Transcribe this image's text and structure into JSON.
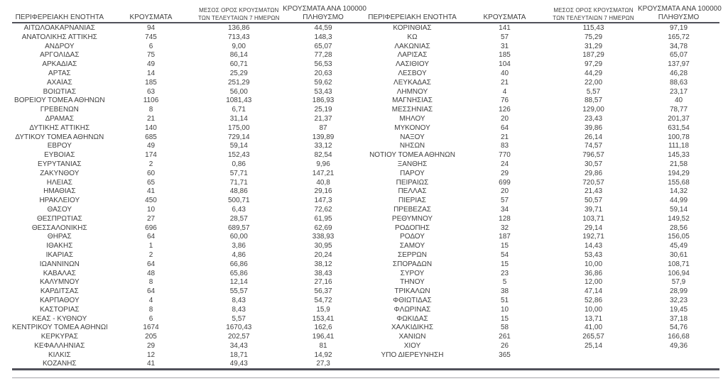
{
  "document": {
    "kind": "regional-covid-cases-table",
    "language": "el"
  },
  "colors": {
    "background": "#ffffff",
    "text": "#3f3f3f",
    "rule_dark": "#50515a",
    "rule_light": "#a3a3a9"
  },
  "table": {
    "headers": {
      "region": "ΠΕΡΙΦΕΡΕΙΑΚΗ ΕΝΟΤΗΤΑ",
      "cases": "ΚΡΟΥΣΜΑΤΑ",
      "avg7_line1": "ΜΕΣΟΣ ΟΡΟΣ ΚΡΟΥΣΜΑΤΩΝ",
      "avg7_line2": "ΤΩΝ ΤΕΛΕΥΤΑΙΩΝ 7 ΗΜΕΡΩΝ",
      "per100k_line1": "ΚΡΟΥΣΜΑΤΑ ΑΝΑ 100000",
      "per100k_line2": "ΠΛΗΘΥΣΜΟ"
    },
    "left_rows": [
      [
        "ΑΙΤΩΛΟΑΚΑΡΝΑΝΙΑΣ",
        "94",
        "136,86",
        "44,59"
      ],
      [
        "ΑΝΑΤΟΛΙΚΗΣ ΑΤΤΙΚΗΣ",
        "745",
        "713,43",
        "148,3"
      ],
      [
        "ΑΝΔΡΟΥ",
        "6",
        "9,00",
        "65,07"
      ],
      [
        "ΑΡΓΟΛΙΔΑΣ",
        "75",
        "86,14",
        "77,28"
      ],
      [
        "ΑΡΚΑΔΙΑΣ",
        "49",
        "60,71",
        "56,53"
      ],
      [
        "ΑΡΤΑΣ",
        "14",
        "25,29",
        "20,63"
      ],
      [
        "ΑΧΑΪΑΣ",
        "185",
        "251,29",
        "59,62"
      ],
      [
        "ΒΟΙΩΤΙΑΣ",
        "63",
        "56,00",
        "53,43"
      ],
      [
        "ΒΟΡΕΙΟΥ ΤΟΜΕΑ ΑΘΗΝΩΝ",
        "1106",
        "1081,43",
        "186,93"
      ],
      [
        "ΓΡΕΒΕΝΩΝ",
        "8",
        "6,71",
        "25,19"
      ],
      [
        "ΔΡΑΜΑΣ",
        "21",
        "31,14",
        "21,37"
      ],
      [
        "ΔΥΤΙΚΗΣ ΑΤΤΙΚΗΣ",
        "140",
        "175,00",
        "87"
      ],
      [
        "ΔΥΤΙΚΟΥ ΤΟΜΕΑ ΑΘΗΝΩΝ",
        "685",
        "729,14",
        "139,89"
      ],
      [
        "ΕΒΡΟΥ",
        "49",
        "59,14",
        "33,12"
      ],
      [
        "ΕΥΒΟΙΑΣ",
        "174",
        "152,43",
        "82,54"
      ],
      [
        "ΕΥΡΥΤΑΝΙΑΣ",
        "2",
        "0,86",
        "9,96"
      ],
      [
        "ΖΑΚΥΝΘΟΥ",
        "60",
        "57,71",
        "147,21"
      ],
      [
        "ΗΛΕΙΑΣ",
        "65",
        "71,71",
        "40,8"
      ],
      [
        "ΗΜΑΘΙΑΣ",
        "41",
        "48,86",
        "29,16"
      ],
      [
        "ΗΡΑΚΛΕΙΟΥ",
        "450",
        "500,71",
        "147,3"
      ],
      [
        "ΘΑΣΟΥ",
        "10",
        "6,43",
        "72,62"
      ],
      [
        "ΘΕΣΠΡΩΤΙΑΣ",
        "27",
        "28,57",
        "61,95"
      ],
      [
        "ΘΕΣΣΑΛΟΝΙΚΗΣ",
        "696",
        "689,57",
        "62,69"
      ],
      [
        "ΘΗΡΑΣ",
        "64",
        "60,00",
        "338,93"
      ],
      [
        "ΙΘΑΚΗΣ",
        "1",
        "3,86",
        "30,95"
      ],
      [
        "ΙΚΑΡΙΑΣ",
        "2",
        "4,86",
        "20,24"
      ],
      [
        "ΙΩΑΝΝΙΝΩΝ",
        "64",
        "66,86",
        "38,12"
      ],
      [
        "ΚΑΒΑΛΑΣ",
        "48",
        "65,86",
        "38,43"
      ],
      [
        "ΚΑΛΥΜΝΟΥ",
        "8",
        "12,14",
        "27,16"
      ],
      [
        "ΚΑΡΔΙΤΣΑΣ",
        "64",
        "55,57",
        "56,37"
      ],
      [
        "ΚΑΡΠΑΘΟΥ",
        "4",
        "8,43",
        "54,72"
      ],
      [
        "ΚΑΣΤΟΡΙΑΣ",
        "8",
        "8,43",
        "15,9"
      ],
      [
        "ΚΕΑΣ - ΚΥΘΝΟΥ",
        "6",
        "5,57",
        "153,41"
      ],
      [
        "ΚΕΝΤΡΙΚΟΥ ΤΟΜΕΑ ΑΘΗΝΩΝ",
        "1674",
        "1670,43",
        "162,6"
      ],
      [
        "ΚΕΡΚΥΡΑΣ",
        "205",
        "202,57",
        "196,41"
      ],
      [
        "ΚΕΦΑΛΛΗΝΙΑΣ",
        "29",
        "34,43",
        "81"
      ],
      [
        "ΚΙΛΚΙΣ",
        "12",
        "18,71",
        "14,92"
      ],
      [
        "ΚΟΖΑΝΗΣ",
        "41",
        "49,43",
        "27,3"
      ]
    ],
    "right_rows": [
      [
        "ΚΟΡΙΝΘΙΑΣ",
        "141",
        "115,43",
        "97,19"
      ],
      [
        "ΚΩ",
        "57",
        "75,29",
        "165,72"
      ],
      [
        "ΛΑΚΩΝΙΑΣ",
        "31",
        "31,29",
        "34,78"
      ],
      [
        "ΛΑΡΙΣΑΣ",
        "185",
        "187,29",
        "65,07"
      ],
      [
        "ΛΑΣΙΘΙΟΥ",
        "104",
        "97,29",
        "137,97"
      ],
      [
        "ΛΕΣΒΟΥ",
        "40",
        "44,29",
        "46,28"
      ],
      [
        "ΛΕΥΚΑΔΑΣ",
        "21",
        "22,00",
        "88,63"
      ],
      [
        "ΛΗΜΝΟΥ",
        "4",
        "5,57",
        "23,17"
      ],
      [
        "ΜΑΓΝΗΣΙΑΣ",
        "76",
        "88,57",
        "40"
      ],
      [
        "ΜΕΣΣΗΝΙΑΣ",
        "126",
        "129,00",
        "78,77"
      ],
      [
        "ΜΗΛΟΥ",
        "20",
        "23,43",
        "201,37"
      ],
      [
        "ΜΥΚΟΝΟΥ",
        "64",
        "39,86",
        "631,54"
      ],
      [
        "ΝΑΞΟΥ",
        "21",
        "26,14",
        "100,78"
      ],
      [
        "ΝΗΣΩΝ",
        "83",
        "74,57",
        "111,18"
      ],
      [
        "ΝΟΤΙΟΥ ΤΟΜΕΑ ΑΘΗΝΩΝ",
        "770",
        "796,57",
        "145,33"
      ],
      [
        "ΞΑΝΘΗΣ",
        "24",
        "30,57",
        "21,58"
      ],
      [
        "ΠΑΡΟΥ",
        "29",
        "29,86",
        "194,29"
      ],
      [
        "ΠΕΙΡΑΙΩΣ",
        "699",
        "720,57",
        "155,68"
      ],
      [
        "ΠΕΛΛΑΣ",
        "20",
        "21,43",
        "14,32"
      ],
      [
        "ΠΙΕΡΙΑΣ",
        "57",
        "50,57",
        "44,99"
      ],
      [
        "ΠΡΕΒΕΖΑΣ",
        "34",
        "39,71",
        "59,14"
      ],
      [
        "ΡΕΘΥΜΝΟΥ",
        "128",
        "103,71",
        "149,52"
      ],
      [
        "ΡΟΔΟΠΗΣ",
        "32",
        "29,14",
        "28,56"
      ],
      [
        "ΡΟΔΟΥ",
        "187",
        "192,71",
        "156,05"
      ],
      [
        "ΣΑΜΟΥ",
        "15",
        "14,43",
        "45,49"
      ],
      [
        "ΣΕΡΡΩΝ",
        "54",
        "53,43",
        "30,61"
      ],
      [
        "ΣΠΟΡΑΔΩΝ",
        "15",
        "10,00",
        "108,71"
      ],
      [
        "ΣΥΡΟΥ",
        "23",
        "36,86",
        "106,94"
      ],
      [
        "ΤΗΝΟΥ",
        "5",
        "12,00",
        "57,9"
      ],
      [
        "ΤΡΙΚΑΛΩΝ",
        "38",
        "47,14",
        "28,99"
      ],
      [
        "ΦΘΙΩΤΙΔΑΣ",
        "51",
        "52,86",
        "32,23"
      ],
      [
        "ΦΛΩΡΙΝΑΣ",
        "10",
        "10,00",
        "19,45"
      ],
      [
        "ΦΩΚΙΔΑΣ",
        "15",
        "13,71",
        "37,18"
      ],
      [
        "ΧΑΛΚΙΔΙΚΗΣ",
        "58",
        "41,00",
        "54,76"
      ],
      [
        "ΧΑΝΙΩΝ",
        "261",
        "265,57",
        "166,68"
      ],
      [
        "ΧΙΟΥ",
        "26",
        "25,14",
        "49,36"
      ],
      [
        "ΥΠΟ ΔΙΕΡΕΥΝΗΣΗ",
        "365",
        "",
        ""
      ]
    ]
  }
}
